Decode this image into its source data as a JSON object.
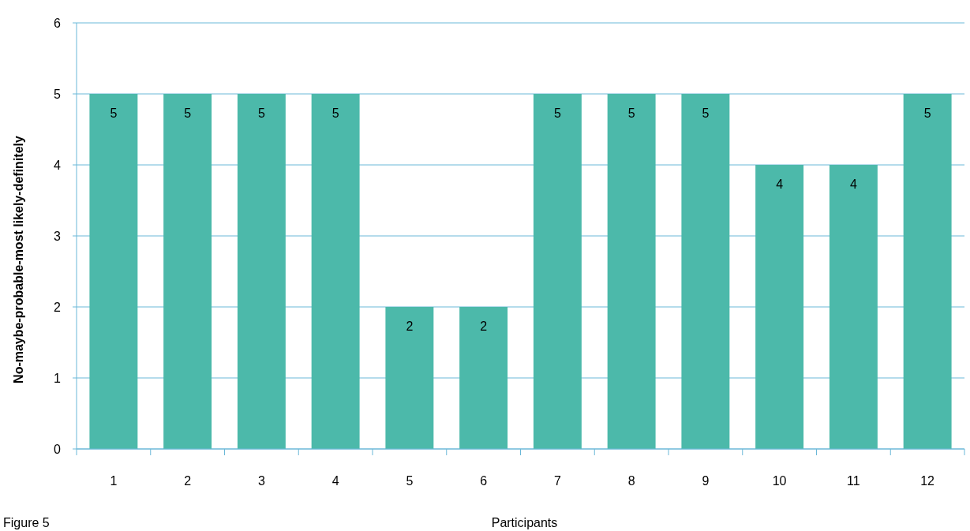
{
  "chart_data": {
    "type": "bar",
    "xlabel": "Participants",
    "ylabel": "No-maybe-probable-most likely-definitely",
    "categories": [
      "1",
      "2",
      "3",
      "4",
      "5",
      "6",
      "7",
      "8",
      "9",
      "10",
      "11",
      "12"
    ],
    "values": [
      5,
      5,
      5,
      5,
      2,
      2,
      5,
      5,
      5,
      4,
      4,
      5
    ],
    "color": "#4cb9aa",
    "ylim": [
      0,
      6
    ],
    "yticks": [
      0,
      1,
      2,
      3,
      4,
      5,
      6
    ],
    "grid": "y",
    "data_labels": true,
    "annotations": [
      "Figure 5"
    ]
  }
}
